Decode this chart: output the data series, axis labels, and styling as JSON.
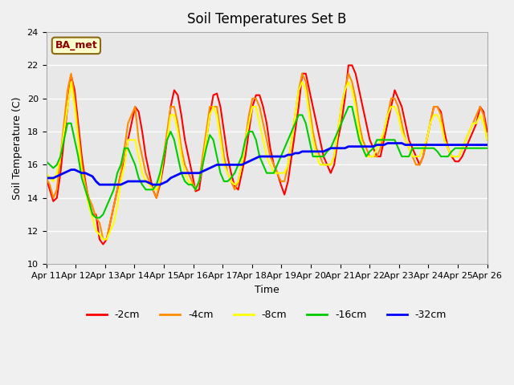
{
  "title": "Soil Temperatures Set B",
  "xlabel": "Time",
  "ylabel": "Soil Temperature (C)",
  "ylim": [
    10,
    24
  ],
  "xlim": [
    0,
    360
  ],
  "annotation": "BA_met",
  "series": {
    "-2cm": {
      "color": "#ff0000",
      "lw": 1.5,
      "values": [
        15.2,
        14.5,
        13.8,
        14.0,
        15.5,
        17.5,
        19.5,
        21.4,
        20.5,
        18.5,
        16.5,
        15.0,
        13.8,
        13.0,
        13.0,
        11.5,
        11.2,
        11.5,
        12.5,
        13.5,
        14.5,
        15.5,
        16.2,
        17.5,
        18.5,
        19.5,
        19.2,
        18.0,
        16.5,
        15.5,
        14.5,
        14.0,
        14.8,
        16.0,
        17.5,
        19.5,
        20.5,
        20.2,
        19.0,
        17.5,
        16.5,
        15.5,
        14.4,
        14.5,
        16.0,
        17.5,
        19.0,
        20.2,
        20.3,
        19.5,
        18.0,
        16.5,
        15.5,
        14.7,
        14.5,
        15.5,
        16.5,
        18.0,
        19.5,
        20.2,
        20.2,
        19.5,
        18.5,
        17.0,
        16.0,
        15.5,
        14.8,
        14.2,
        15.0,
        16.5,
        18.0,
        19.5,
        21.5,
        21.5,
        20.5,
        19.5,
        18.5,
        17.5,
        16.5,
        16.0,
        15.5,
        16.0,
        17.5,
        18.5,
        20.0,
        22.0,
        22.0,
        21.5,
        20.5,
        19.5,
        18.5,
        17.5,
        17.0,
        16.5,
        16.5,
        17.5,
        18.5,
        19.5,
        20.5,
        20.0,
        19.5,
        18.5,
        17.5,
        17.0,
        16.5,
        16.0,
        16.5,
        17.5,
        18.5,
        19.5,
        19.5,
        19.2,
        18.0,
        17.0,
        16.5,
        16.2,
        16.2,
        16.5,
        17.0,
        17.5,
        18.0,
        18.5,
        19.5,
        19.2,
        18.0
      ]
    },
    "-4cm": {
      "color": "#ff8c00",
      "lw": 1.5,
      "values": [
        15.2,
        14.8,
        14.0,
        14.5,
        16.5,
        18.5,
        20.5,
        21.5,
        20.0,
        18.0,
        16.0,
        14.8,
        14.0,
        13.5,
        12.8,
        12.5,
        11.5,
        11.5,
        12.5,
        13.5,
        14.5,
        15.5,
        17.0,
        18.5,
        19.0,
        19.5,
        17.5,
        16.5,
        15.5,
        15.0,
        14.5,
        14.0,
        15.0,
        16.5,
        18.0,
        19.5,
        19.5,
        18.5,
        17.0,
        16.0,
        15.5,
        15.0,
        14.5,
        15.0,
        16.5,
        18.0,
        19.5,
        19.5,
        19.5,
        18.0,
        16.5,
        15.5,
        15.0,
        14.5,
        15.0,
        16.0,
        17.5,
        19.0,
        20.0,
        20.0,
        19.5,
        18.5,
        17.5,
        16.5,
        16.0,
        15.5,
        15.0,
        15.0,
        16.0,
        17.5,
        19.0,
        20.5,
        21.5,
        21.0,
        19.5,
        18.0,
        17.0,
        16.5,
        16.0,
        16.0,
        16.0,
        16.5,
        18.0,
        19.5,
        20.5,
        21.5,
        21.0,
        20.0,
        18.5,
        17.5,
        17.0,
        16.5,
        16.5,
        16.5,
        17.0,
        18.0,
        19.0,
        20.0,
        20.0,
        19.5,
        18.5,
        17.5,
        17.0,
        16.5,
        16.0,
        16.0,
        16.5,
        17.5,
        18.5,
        19.5,
        19.5,
        19.0,
        17.5,
        17.0,
        16.5,
        16.5,
        16.5,
        17.0,
        17.5,
        18.0,
        18.5,
        19.0,
        19.5,
        19.0,
        17.5
      ]
    },
    "-8cm": {
      "color": "#ffff00",
      "lw": 1.5,
      "values": [
        15.5,
        15.2,
        15.0,
        15.5,
        16.5,
        18.0,
        19.5,
        21.0,
        19.5,
        17.5,
        15.5,
        14.5,
        13.5,
        12.8,
        12.0,
        11.8,
        11.5,
        11.5,
        12.0,
        12.5,
        13.5,
        15.0,
        16.0,
        17.5,
        17.5,
        17.5,
        16.5,
        15.5,
        15.0,
        14.8,
        14.5,
        14.5,
        15.0,
        16.5,
        17.5,
        19.0,
        19.0,
        18.0,
        16.5,
        15.5,
        15.0,
        14.8,
        14.5,
        15.0,
        16.0,
        17.5,
        19.0,
        19.5,
        19.0,
        17.5,
        16.0,
        15.5,
        15.0,
        14.8,
        15.0,
        16.0,
        17.5,
        18.5,
        19.5,
        19.5,
        18.5,
        17.5,
        16.5,
        16.0,
        15.5,
        15.5,
        15.5,
        15.5,
        16.0,
        17.5,
        19.0,
        20.5,
        21.0,
        20.5,
        19.0,
        17.5,
        16.5,
        16.0,
        16.0,
        16.0,
        16.0,
        16.5,
        18.0,
        19.5,
        20.5,
        21.0,
        20.5,
        19.5,
        18.0,
        17.0,
        16.5,
        16.5,
        16.5,
        17.0,
        17.5,
        18.0,
        19.0,
        19.5,
        19.5,
        19.0,
        18.0,
        17.5,
        17.0,
        16.5,
        16.5,
        16.5,
        17.0,
        17.5,
        18.5,
        19.0,
        19.0,
        18.5,
        17.5,
        17.0,
        16.5,
        16.5,
        16.5,
        17.0,
        17.5,
        18.0,
        18.5,
        18.5,
        19.0,
        18.5,
        17.5
      ]
    },
    "-16cm": {
      "color": "#00cc00",
      "lw": 1.5,
      "values": [
        16.2,
        16.0,
        15.8,
        16.0,
        16.5,
        17.5,
        18.5,
        18.5,
        17.5,
        16.5,
        15.2,
        14.5,
        13.8,
        13.0,
        12.8,
        12.8,
        13.0,
        13.5,
        14.0,
        14.5,
        15.5,
        16.0,
        17.0,
        17.0,
        16.5,
        16.0,
        15.2,
        14.8,
        14.5,
        14.5,
        14.5,
        14.8,
        15.5,
        16.5,
        17.5,
        18.0,
        17.5,
        16.5,
        15.5,
        15.0,
        14.8,
        14.8,
        14.5,
        15.0,
        16.0,
        17.0,
        17.8,
        17.5,
        16.5,
        15.5,
        15.0,
        15.0,
        15.2,
        15.5,
        16.0,
        16.5,
        17.5,
        18.0,
        18.0,
        17.5,
        16.5,
        16.0,
        15.5,
        15.5,
        15.5,
        16.0,
        16.5,
        17.0,
        17.5,
        18.0,
        18.5,
        19.0,
        19.0,
        18.5,
        17.5,
        16.5,
        16.5,
        16.5,
        16.5,
        16.8,
        17.0,
        17.5,
        18.0,
        18.5,
        19.0,
        19.5,
        19.5,
        18.5,
        17.5,
        17.0,
        16.5,
        16.8,
        17.0,
        17.5,
        17.5,
        17.5,
        17.5,
        17.5,
        17.5,
        17.0,
        16.5,
        16.5,
        16.5,
        17.0,
        17.0,
        17.0,
        17.0,
        17.0,
        17.0,
        17.0,
        16.8,
        16.5,
        16.5,
        16.5,
        16.8,
        17.0,
        17.0,
        17.0,
        17.0,
        17.0,
        17.0,
        17.0,
        17.0,
        17.0,
        17.0
      ]
    },
    "-32cm": {
      "color": "#0000ff",
      "lw": 2.0,
      "values": [
        15.2,
        15.2,
        15.2,
        15.3,
        15.4,
        15.5,
        15.6,
        15.7,
        15.7,
        15.6,
        15.5,
        15.5,
        15.4,
        15.3,
        15.0,
        14.8,
        14.8,
        14.8,
        14.8,
        14.8,
        14.8,
        14.8,
        14.9,
        15.0,
        15.0,
        15.0,
        15.0,
        15.0,
        15.0,
        14.9,
        14.8,
        14.8,
        14.8,
        14.9,
        15.0,
        15.2,
        15.3,
        15.4,
        15.5,
        15.5,
        15.5,
        15.5,
        15.5,
        15.5,
        15.6,
        15.7,
        15.8,
        15.9,
        16.0,
        16.0,
        16.0,
        16.0,
        16.0,
        16.0,
        16.0,
        16.0,
        16.1,
        16.2,
        16.3,
        16.4,
        16.5,
        16.5,
        16.5,
        16.5,
        16.5,
        16.5,
        16.5,
        16.5,
        16.6,
        16.6,
        16.7,
        16.7,
        16.8,
        16.8,
        16.8,
        16.8,
        16.8,
        16.8,
        16.8,
        16.9,
        17.0,
        17.0,
        17.0,
        17.0,
        17.0,
        17.1,
        17.1,
        17.1,
        17.1,
        17.1,
        17.1,
        17.1,
        17.1,
        17.2,
        17.2,
        17.2,
        17.3,
        17.3,
        17.3,
        17.3,
        17.3,
        17.2,
        17.2,
        17.2,
        17.2,
        17.2,
        17.2,
        17.2,
        17.2,
        17.2,
        17.2,
        17.2,
        17.2,
        17.2,
        17.2,
        17.2,
        17.2,
        17.2,
        17.2,
        17.2,
        17.2,
        17.2,
        17.2,
        17.2,
        17.2
      ]
    }
  },
  "xtick_labels": [
    "Apr 11",
    "Apr 12",
    "Apr 13",
    "Apr 14",
    "Apr 15",
    "Apr 16",
    "Apr 17",
    "Apr 18",
    "Apr 19",
    "Apr 20",
    "Apr 21",
    "Apr 22",
    "Apr 23",
    "Apr 24",
    "Apr 25",
    "Apr 26"
  ],
  "ytick_labels": [
    10,
    12,
    14,
    16,
    18,
    20,
    22,
    24
  ],
  "bg_color": "#e8e8e8",
  "plot_bg": "#e8e8e8",
  "grid_color": "#ffffff"
}
